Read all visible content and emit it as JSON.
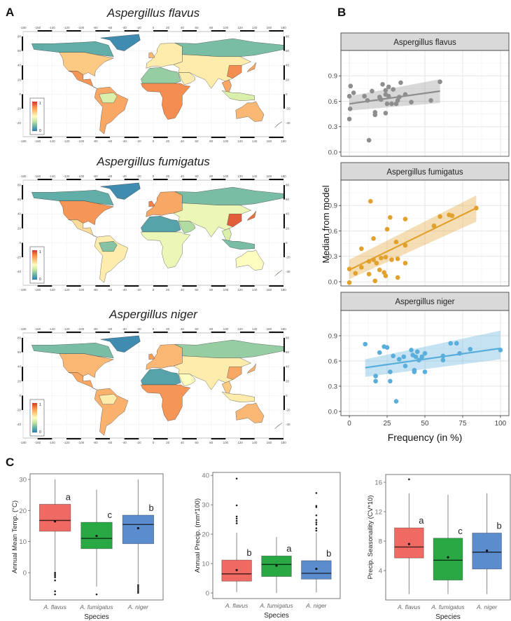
{
  "panel_labels": {
    "a": "A",
    "b": "B",
    "c": "C"
  },
  "colors": {
    "flavus": "#ee6a63",
    "fumigatus": "#2aa844",
    "niger": "#5b8ccd",
    "scatter_flavus": "#8e8e8e",
    "scatter_fumigatus": "#e2a12c",
    "scatter_niger": "#5aaedc",
    "scale": [
      "#2f7bb6",
      "#67b3a6",
      "#c4e6a0",
      "#fdfdbf",
      "#fdc47e",
      "#f3894c",
      "#d2362a"
    ]
  },
  "chart_data": [
    {
      "type": "heatmap",
      "panel": "A",
      "title": "Aspergillus flavus",
      "legend": {
        "max_label": "1",
        "min_label": "0"
      },
      "lon_ticks": [
        "-180",
        "-160",
        "-140",
        "-120",
        "-100",
        "-80",
        "-60",
        "-40",
        "-20",
        "0",
        "20",
        "40",
        "60",
        "80",
        "100",
        "120",
        "140",
        "160",
        "180"
      ],
      "lat_ticks": [
        "80",
        "60",
        "40",
        "20",
        "0",
        "-20",
        "-40"
      ],
      "suitability": {
        "greenland": 0.05,
        "arctic_america": 0.15,
        "north_america": 0.65,
        "central_america": 0.8,
        "south_america": 0.75,
        "amazon": 0.4,
        "europe": 0.55,
        "britain": 0.7,
        "siberia": 0.2,
        "central_asia": 0.55,
        "east_china": 0.82,
        "arabia": 0.55,
        "sahara": 0.25,
        "subsaharan_africa": 0.82,
        "southeast_asia": 0.75,
        "indonesia": 0.4,
        "australia": 0.7,
        "japan": 0.75,
        "new_zealand": 0.6
      }
    },
    {
      "type": "heatmap",
      "panel": "A",
      "title": "Aspergillus fumigatus",
      "legend": {
        "max_label": "1",
        "min_label": "0"
      },
      "lon_ticks": [
        "-180",
        "-160",
        "-140",
        "-120",
        "-100",
        "-80",
        "-60",
        "-40",
        "-20",
        "0",
        "20",
        "40",
        "60",
        "80",
        "100",
        "120",
        "140",
        "160",
        "180"
      ],
      "lat_ticks": [
        "80",
        "60",
        "40",
        "20",
        "0",
        "-20",
        "-40"
      ],
      "suitability": {
        "greenland": 0.05,
        "arctic_america": 0.15,
        "north_america": 0.8,
        "central_america": 0.6,
        "south_america": 0.55,
        "amazon": 0.22,
        "europe": 0.75,
        "britain": 0.85,
        "siberia": 0.2,
        "central_asia": 0.45,
        "east_china": 0.92,
        "arabia": 0.3,
        "sahara": 0.12,
        "subsaharan_africa": 0.45,
        "southeast_asia": 0.4,
        "indonesia": 0.2,
        "australia": 0.5,
        "japan": 0.88,
        "new_zealand": 0.7
      }
    },
    {
      "type": "heatmap",
      "panel": "A",
      "title": "Aspergillus niger",
      "legend": {
        "max_label": "1",
        "min_label": "0"
      },
      "lon_ticks": [
        "-180",
        "-160",
        "-140",
        "-120",
        "-100",
        "-80",
        "-60",
        "-40",
        "-20",
        "0",
        "20",
        "40",
        "60",
        "80",
        "100",
        "120",
        "140",
        "160",
        "180"
      ],
      "lat_ticks": [
        "80",
        "60",
        "40",
        "20",
        "0",
        "-20",
        "-40"
      ],
      "suitability": {
        "greenland": 0.05,
        "arctic_america": 0.2,
        "north_america": 0.7,
        "central_america": 0.75,
        "south_america": 0.72,
        "amazon": 0.55,
        "europe": 0.7,
        "britain": 0.78,
        "siberia": 0.25,
        "central_asia": 0.55,
        "east_china": 0.75,
        "arabia": 0.5,
        "sahara": 0.12,
        "subsaharan_africa": 0.8,
        "southeast_asia": 0.65,
        "indonesia": 0.55,
        "australia": 0.7,
        "japan": 0.72,
        "new_zealand": 0.65
      }
    },
    {
      "type": "scatter",
      "panel": "B",
      "xlabel": "Frequency (in %)",
      "ylabel": "Median from model",
      "xlim": [
        -5.6,
        105.6
      ],
      "ylim": [
        -0.05,
        1.2
      ],
      "x_ticks": [
        "0",
        "25",
        "50",
        "75",
        "100"
      ],
      "y_ticks": [
        "0.0",
        "0.3",
        "0.6",
        "0.9"
      ],
      "facets": [
        {
          "title": "Aspergillus flavus",
          "color_key": "scatter_flavus",
          "x": [
            0,
            0,
            0.8,
            0.5,
            2.8,
            10,
            12,
            13,
            15,
            17,
            17,
            20,
            21,
            22,
            24,
            24,
            24,
            25,
            26,
            26,
            28,
            29,
            31,
            32,
            33,
            34,
            37,
            41,
            54,
            60
          ],
          "y": [
            0.39,
            0.66,
            0.78,
            0.51,
            0.7,
            0.66,
            0.61,
            0.14,
            0.72,
            0.47,
            0.44,
            0.65,
            0.62,
            0.8,
            0.73,
            0.46,
            0.68,
            0.57,
            0.77,
            0.66,
            0.57,
            0.74,
            0.57,
            0.61,
            0.65,
            0.82,
            0.68,
            0.59,
            0.61,
            0.83
          ],
          "fit": {
            "x": [
              0,
              60
            ],
            "y": [
              0.57,
              0.72
            ],
            "lower": [
              0.49,
              0.58
            ],
            "upper": [
              0.66,
              0.86
            ]
          }
        },
        {
          "title": "Aspergillus fumigatus",
          "color_key": "scatter_fumigatus",
          "x": [
            0,
            0,
            4,
            8,
            8,
            13,
            13,
            14,
            16,
            16,
            17,
            18,
            20,
            21,
            23,
            24,
            24,
            25,
            27,
            28,
            31,
            32,
            32,
            37,
            37,
            37,
            56,
            60,
            66,
            68,
            84
          ],
          "y": [
            -0.01,
            0.15,
            0.1,
            0.17,
            0.39,
            0.09,
            0.24,
            0.95,
            0.26,
            0.51,
            0.01,
            0.22,
            0.14,
            0.28,
            0.11,
            0.29,
            0.07,
            0.62,
            0.76,
            0.26,
            0.47,
            0.27,
            0.05,
            0.74,
            0.43,
            0.22,
            0.66,
            0.77,
            0.79,
            0.78,
            0.87
          ],
          "fit": {
            "x": [
              0,
              84
            ],
            "y": [
              0.14,
              0.87
            ],
            "lower": [
              0.03,
              0.71
            ],
            "upper": [
              0.26,
              1.02
            ]
          }
        },
        {
          "title": "Aspergillus niger",
          "color_key": "scatter_niger",
          "x": [
            10.5,
            17.4,
            17.4,
            20,
            23,
            25,
            27,
            27,
            29,
            31,
            33,
            36,
            37,
            41,
            42,
            43,
            43,
            44,
            45,
            46,
            48,
            50,
            50,
            62,
            62,
            67,
            71,
            73,
            80,
            100
          ],
          "y": [
            0.8,
            0.42,
            0.36,
            0.7,
            0.77,
            0.76,
            0.47,
            0.36,
            0.66,
            0.12,
            0.62,
            0.65,
            0.54,
            0.73,
            0.67,
            0.47,
            0.49,
            0.65,
            0.71,
            0.61,
            0.65,
            0.69,
            0.47,
            0.66,
            0.61,
            0.81,
            0.81,
            0.69,
            0.74,
            0.73
          ],
          "fit": {
            "x": [
              10.5,
              100
            ],
            "y": [
              0.52,
              0.75
            ],
            "lower": [
              0.41,
              0.62
            ],
            "upper": [
              0.62,
              0.96
            ]
          }
        }
      ]
    },
    {
      "type": "box",
      "panel": "C",
      "ylabel": "Annual Mean Temp. (°C)",
      "xlabel": "Species",
      "ylim": [
        -8.8,
        31.8
      ],
      "y_ticks": [
        0,
        10,
        20,
        30
      ],
      "categories": [
        "A. flavus",
        "A. fumigatus",
        "A. niger"
      ],
      "boxes": [
        {
          "color_key": "flavus",
          "q1": 13.3,
          "median": 16.8,
          "q3": 22,
          "mean": 16.5,
          "whisker_low": 0.5,
          "whisker_high": 30,
          "outliers": [
            0,
            -0.5,
            -1,
            -1.5,
            -2.5,
            -6,
            -7
          ],
          "letter": "a"
        },
        {
          "color_key": "fumigatus",
          "q1": 7.7,
          "median": 11,
          "q3": 16.2,
          "mean": 11.8,
          "whisker_low": -4.5,
          "whisker_high": 26.7,
          "outliers": [
            -7
          ],
          "letter": "c"
        },
        {
          "color_key": "niger",
          "q1": 9.3,
          "median": 15.5,
          "q3": 18.5,
          "mean": 14.3,
          "whisker_low": -3.5,
          "whisker_high": 30,
          "outliers": [
            -4,
            -4.5,
            -5,
            -5.5,
            -6,
            -6.5
          ],
          "letter": "b"
        }
      ]
    },
    {
      "type": "box",
      "panel": "C",
      "ylabel": "Annual Precip. (mm*100)",
      "xlabel": "Species",
      "ylim": [
        -1.9,
        41
      ],
      "y_ticks": [
        0,
        10,
        20,
        30,
        40
      ],
      "categories": [
        "A. flavus",
        "A. fumigatus",
        "A. niger"
      ],
      "boxes": [
        {
          "color_key": "flavus",
          "q1": 4,
          "median": 6.5,
          "q3": 11.2,
          "mean": 7.8,
          "whisker_low": 0.3,
          "whisker_high": 20.5,
          "outliers": [
            23.7,
            24.5,
            25.3,
            26,
            29.8,
            38.9
          ],
          "letter": "b"
        },
        {
          "color_key": "fumigatus",
          "q1": 5.6,
          "median": 9.7,
          "q3": 12.6,
          "mean": 9.3,
          "whisker_low": 0,
          "whisker_high": 19,
          "outliers": [],
          "letter": "a"
        },
        {
          "color_key": "niger",
          "q1": 4.7,
          "median": 6.7,
          "q3": 11,
          "mean": 8.2,
          "whisker_low": 0.2,
          "whisker_high": 20.5,
          "outliers": [
            21.2,
            22,
            23.3,
            24,
            24.8,
            26.4,
            29.2,
            29.6,
            34
          ],
          "letter": "b"
        }
      ]
    },
    {
      "type": "box",
      "panel": "C",
      "ylabel": "Precip. Seasonaility (CV*10)",
      "xlabel": "Species",
      "ylim": [
        0,
        17.05
      ],
      "y_ticks": [
        4,
        8,
        12,
        16
      ],
      "categories": [
        "A. flavus",
        "A. fumigatus",
        "A. niger"
      ],
      "boxes": [
        {
          "color_key": "flavus",
          "q1": 5.7,
          "median": 7.2,
          "q3": 9.8,
          "mean": 7.6,
          "whisker_low": 0.8,
          "whisker_high": 14.5,
          "outliers": [
            16.4
          ],
          "letter": "a"
        },
        {
          "color_key": "fumigatus",
          "q1": 2.7,
          "median": 5.4,
          "q3": 8.4,
          "mean": 5.8,
          "whisker_low": 0.8,
          "whisker_high": 14.3,
          "outliers": [],
          "letter": "c"
        },
        {
          "color_key": "niger",
          "q1": 4.2,
          "median": 6.5,
          "q3": 9.1,
          "mean": 6.7,
          "whisker_low": 0.8,
          "whisker_high": 14.5,
          "outliers": [],
          "letter": "b"
        }
      ]
    }
  ]
}
